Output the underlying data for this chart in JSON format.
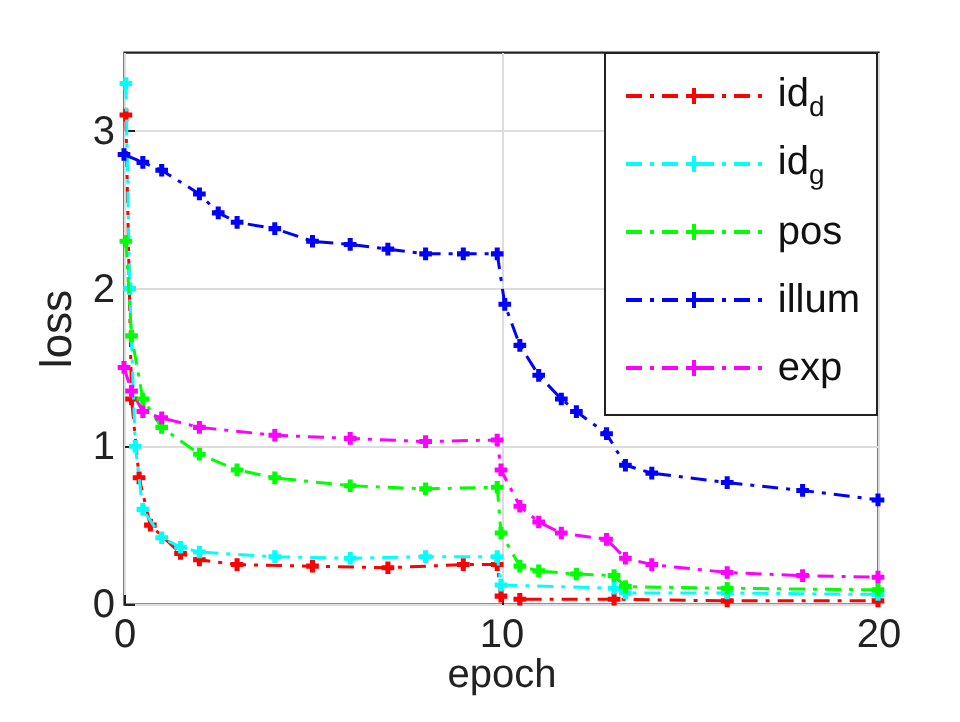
{
  "chart_data": {
    "type": "line",
    "xlabel": "epoch",
    "ylabel": "loss",
    "xlim": [
      0,
      20
    ],
    "ylim": [
      0,
      3.5
    ],
    "xticks": [
      0,
      10,
      20
    ],
    "yticks": [
      0,
      1,
      2,
      3
    ],
    "grid": true,
    "legend": "top right",
    "marker": "cross",
    "line_style": "dashed",
    "series": [
      {
        "name": "id$_{d}$",
        "color": "#ff0000",
        "x": [
          0.05,
          0.2,
          0.4,
          0.7,
          1.5,
          2,
          3,
          5,
          7,
          9,
          9.9,
          10,
          10.5,
          13,
          16,
          20
        ],
        "values": [
          3.1,
          1.3,
          0.8,
          0.5,
          0.32,
          0.28,
          0.25,
          0.24,
          0.23,
          0.25,
          0.25,
          0.05,
          0.03,
          0.03,
          0.02,
          0.02
        ]
      },
      {
        "name": "id$_{g}$",
        "color": "#00ffff",
        "x": [
          0.05,
          0.15,
          0.3,
          0.5,
          1,
          1.5,
          2,
          4,
          6,
          8,
          9.9,
          10,
          13,
          13.3,
          16,
          20
        ],
        "values": [
          3.3,
          2.0,
          1.0,
          0.6,
          0.42,
          0.36,
          0.33,
          0.3,
          0.29,
          0.3,
          0.3,
          0.12,
          0.1,
          0.07,
          0.07,
          0.06
        ]
      },
      {
        "name": "pos",
        "color": "#00ff00",
        "x": [
          0.05,
          0.2,
          0.5,
          1,
          2,
          3,
          4,
          6,
          8,
          9.9,
          10,
          10.5,
          11,
          12,
          13,
          13.3,
          16,
          20
        ],
        "values": [
          2.3,
          1.7,
          1.3,
          1.12,
          0.95,
          0.85,
          0.8,
          0.75,
          0.73,
          0.74,
          0.45,
          0.24,
          0.21,
          0.19,
          0.18,
          0.11,
          0.1,
          0.09
        ]
      },
      {
        "name": "illum",
        "color": "#0000ff",
        "x": [
          0,
          0.5,
          1,
          2,
          2.5,
          3,
          4,
          5,
          6,
          7,
          8,
          9,
          9.9,
          10.1,
          10.5,
          11,
          11.6,
          12,
          12.8,
          13.3,
          14,
          16,
          18,
          20
        ],
        "values": [
          2.85,
          2.8,
          2.75,
          2.6,
          2.48,
          2.42,
          2.38,
          2.3,
          2.28,
          2.25,
          2.22,
          2.22,
          2.22,
          1.9,
          1.64,
          1.45,
          1.3,
          1.22,
          1.08,
          0.88,
          0.83,
          0.77,
          0.72,
          0.66
        ]
      },
      {
        "name": "exp",
        "color": "#ff00ff",
        "x": [
          0,
          0.2,
          0.5,
          1,
          2,
          4,
          6,
          8,
          9.9,
          10,
          10.5,
          11,
          11.6,
          12.8,
          13.3,
          14,
          16,
          18,
          20
        ],
        "values": [
          1.5,
          1.35,
          1.22,
          1.18,
          1.12,
          1.07,
          1.05,
          1.03,
          1.04,
          0.85,
          0.62,
          0.52,
          0.45,
          0.41,
          0.29,
          0.25,
          0.2,
          0.18,
          0.17
        ]
      }
    ]
  }
}
